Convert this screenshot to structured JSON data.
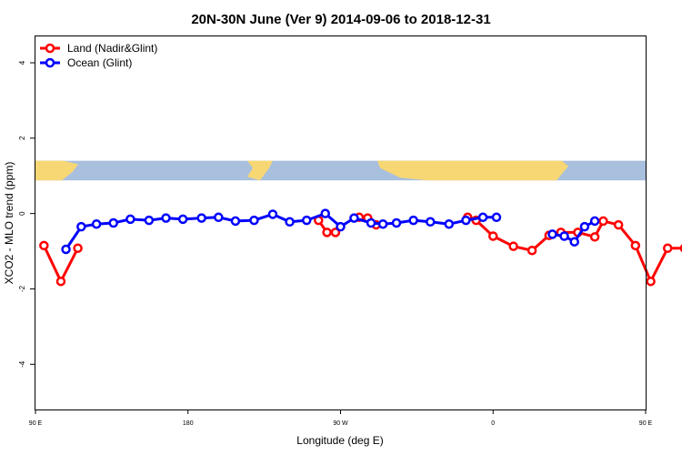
{
  "chart_data": {
    "type": "line",
    "title": "20N-30N June (Ver 9)   2014-09-06 to 2018-12-31",
    "xlabel": "Longitude (deg E)",
    "ylabel": "XCO2 - MLO trend (ppm)",
    "xlim": [
      90,
      450
    ],
    "ylim": [
      -5.2,
      4.7
    ],
    "yticks": [
      4,
      2,
      0,
      -2,
      -4
    ],
    "ytick_labels": [
      "4",
      "2",
      "0",
      "-2",
      "-4"
    ],
    "xticks": [
      90,
      180,
      270,
      360,
      450
    ],
    "xtick_labels": [
      "90 E",
      "180",
      "90 W",
      "0",
      "90 E"
    ],
    "map_band": {
      "ymin": 0.88,
      "ymax": 1.4,
      "ocean_color": "#a8bfde",
      "land_color": "#f7d774"
    },
    "legend_position": "top-left",
    "series": [
      {
        "name": "Land (Nadir&Glint)",
        "color": "#ff0000",
        "segments": [
          {
            "x": [
              95,
              105,
              115
            ],
            "y": [
              -0.85,
              -1.8,
              -0.92
            ]
          },
          {
            "x": [
              257,
              262,
              267
            ],
            "y": [
              -0.18,
              -0.5,
              -0.5
            ]
          },
          {
            "x": [
              281,
              286,
              291
            ],
            "y": [
              -0.1,
              -0.12,
              -0.3
            ]
          },
          {
            "x": [
              345,
              350,
              360,
              372,
              383,
              393,
              400,
              410,
              420,
              425,
              434,
              444,
              453,
              463,
              473,
              480
            ],
            "y": [
              -0.1,
              -0.18,
              -0.6,
              -0.87,
              -0.98,
              -0.58,
              -0.5,
              -0.5,
              -0.62,
              -0.2,
              -0.3,
              -0.85,
              -1.8,
              -0.92,
              -0.92,
              -0.92
            ]
          }
        ]
      },
      {
        "name": "Ocean (Glint)",
        "color": "#0000ff",
        "segments": [
          {
            "x": [
              108,
              117,
              126,
              136,
              146,
              157,
              167,
              177,
              188,
              198,
              208,
              219,
              230,
              240,
              250,
              261,
              270,
              278,
              288,
              295,
              303,
              313,
              323,
              334,
              344,
              354,
              362
            ],
            "y": [
              -0.95,
              -0.35,
              -0.28,
              -0.25,
              -0.15,
              -0.18,
              -0.12,
              -0.15,
              -0.12,
              -0.1,
              -0.2,
              -0.18,
              -0.02,
              -0.22,
              -0.18,
              0.0,
              -0.35,
              -0.12,
              -0.25,
              -0.28,
              -0.25,
              -0.18,
              -0.22,
              -0.28,
              -0.18,
              -0.1,
              -0.1
            ]
          },
          {
            "x": [
              395,
              402,
              408,
              414,
              420
            ],
            "y": [
              -0.55,
              -0.6,
              -0.75,
              -0.35,
              -0.2
            ]
          }
        ]
      }
    ]
  }
}
